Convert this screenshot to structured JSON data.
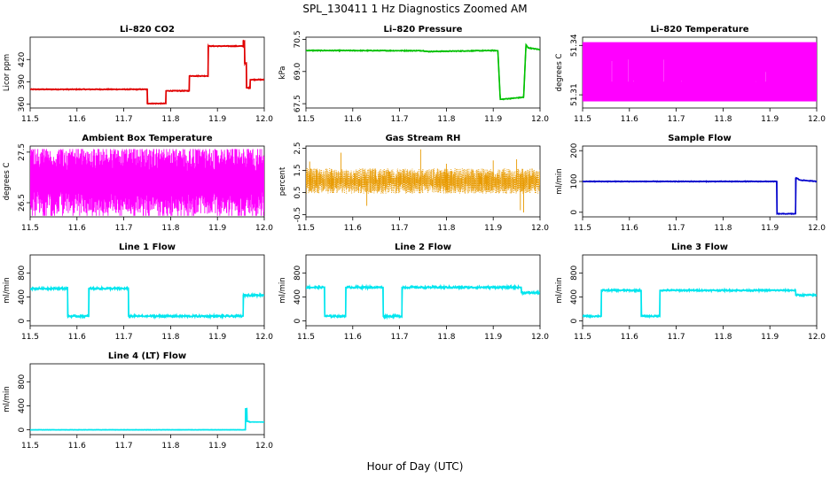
{
  "figure": {
    "title": "SPL_130411  1 Hz Diagnostics Zoomed AM",
    "xlabel": "Hour of Day (UTC)"
  },
  "chart_data": [
    {
      "type": "line",
      "title": "Li–820 CO2",
      "ylabel": "Licor ppm",
      "color": "#e00000",
      "xlim": [
        11.5,
        12.0
      ],
      "ylim": [
        355,
        450
      ],
      "xticks": [
        "11.5",
        "11.6",
        "11.7",
        "11.8",
        "11.9",
        "12.0"
      ],
      "yticks": [
        360,
        390,
        420
      ],
      "noise": 0.6,
      "series": [
        {
          "x": [
            11.5,
            11.75,
            11.75,
            11.79,
            11.79,
            11.84,
            11.84,
            11.88,
            11.88,
            11.955,
            11.955,
            11.958,
            11.958,
            11.962,
            11.962,
            11.97,
            11.97,
            12.0
          ],
          "y": [
            380,
            380,
            361,
            361,
            378,
            378,
            398,
            398,
            438,
            438,
            445,
            445,
            415,
            415,
            382,
            382,
            393,
            393
          ]
        }
      ]
    },
    {
      "type": "line",
      "title": "Li–820 Pressure",
      "ylabel": "kPa",
      "color": "#00c000",
      "xlim": [
        11.5,
        12.0
      ],
      "ylim": [
        67.3,
        70.6
      ],
      "xticks": [
        "11.5",
        "11.6",
        "11.7",
        "11.8",
        "11.9",
        "12.0"
      ],
      "yticks": [
        "67.5",
        "69.0",
        "70.5"
      ],
      "noise": 0.02,
      "series": [
        {
          "x": [
            11.5,
            11.75,
            11.76,
            11.9,
            11.91,
            11.915,
            11.965,
            11.97,
            11.975,
            12.0
          ],
          "y": [
            69.98,
            69.97,
            69.93,
            69.98,
            69.97,
            67.7,
            67.8,
            70.25,
            70.1,
            70.02
          ]
        }
      ]
    },
    {
      "type": "area",
      "title": "Li–820 Temperature",
      "ylabel": "degrees C",
      "color": "#ff00ff",
      "xlim": [
        11.5,
        12.0
      ],
      "ylim": [
        51.302,
        51.345
      ],
      "xticks": [
        "11.5",
        "11.6",
        "11.7",
        "11.8",
        "11.9",
        "12.0"
      ],
      "yticks": [
        "51.31",
        "51.34"
      ],
      "band": [
        51.306,
        51.342
      ],
      "spikes": "upper",
      "low_cut": 51.318,
      "series": [
        {
          "x": [
            11.5,
            12.0
          ],
          "y": [
            51.306,
            51.342
          ]
        }
      ]
    },
    {
      "type": "area",
      "title": "Ambient Box Temperature",
      "ylabel": "degrees C",
      "color": "#ff00ff",
      "xlim": [
        11.5,
        12.0
      ],
      "ylim": [
        26.22,
        27.62
      ],
      "xticks": [
        "11.5",
        "11.6",
        "11.7",
        "11.8",
        "11.9",
        "12.0"
      ],
      "yticks": [
        "26.5",
        "27.5"
      ],
      "band": [
        26.28,
        27.56
      ],
      "spikes": "both",
      "series": [
        {
          "x": [
            11.5,
            12.0
          ],
          "y": [
            26.28,
            27.56
          ]
        }
      ]
    },
    {
      "type": "scatter",
      "title": "Gas Stream RH",
      "ylabel": "percent",
      "color": "#e89a00",
      "xlim": [
        11.5,
        12.0
      ],
      "ylim": [
        -0.6,
        2.6
      ],
      "xticks": [
        "11.5",
        "11.6",
        "11.7",
        "11.8",
        "11.9",
        "12.0"
      ],
      "yticks": [
        "-0.5",
        "0.5",
        "1.5",
        "2.5"
      ],
      "band": [
        0.45,
        1.6
      ],
      "spikes": "sparse",
      "series": [
        {
          "x": [
            11.5,
            12.0
          ],
          "y": [
            0.45,
            1.6
          ]
        }
      ]
    },
    {
      "type": "line",
      "title": "Sample Flow",
      "ylabel": "ml/min",
      "color": "#0000cc",
      "xlim": [
        11.5,
        12.0
      ],
      "ylim": [
        -15,
        215
      ],
      "xticks": [
        "11.5",
        "11.6",
        "11.7",
        "11.8",
        "11.9",
        "12.0"
      ],
      "yticks": [
        "0",
        "100",
        "200"
      ],
      "noise": 1.2,
      "series": [
        {
          "x": [
            11.5,
            11.915,
            11.915,
            11.955,
            11.955,
            11.96,
            11.962,
            12.0
          ],
          "y": [
            100,
            100,
            -5,
            -5,
            110,
            110,
            105,
            100
          ]
        }
      ]
    },
    {
      "type": "line",
      "title": "Line 1 Flow",
      "ylabel": "ml/min",
      "color": "#00e5ee",
      "xlim": [
        11.5,
        12.0
      ],
      "ylim": [
        -80,
        1100
      ],
      "xticks": [
        "11.5",
        "11.6",
        "11.7",
        "11.8",
        "11.9",
        "12.0"
      ],
      "yticks": [
        "0",
        "400",
        "800"
      ],
      "noise": 18,
      "series": [
        {
          "x": [
            11.5,
            11.58,
            11.58,
            11.625,
            11.625,
            11.71,
            11.71,
            11.955,
            11.955,
            12.0
          ],
          "y": [
            540,
            540,
            80,
            80,
            540,
            540,
            80,
            80,
            430,
            430
          ]
        }
      ]
    },
    {
      "type": "line",
      "title": "Line 2 Flow",
      "ylabel": "ml/min",
      "color": "#00e5ee",
      "xlim": [
        11.5,
        12.0
      ],
      "ylim": [
        -80,
        1100
      ],
      "xticks": [
        "11.5",
        "11.6",
        "11.7",
        "11.8",
        "11.9",
        "12.0"
      ],
      "yticks": [
        "0",
        "400",
        "800"
      ],
      "noise": 18,
      "series": [
        {
          "x": [
            11.5,
            11.54,
            11.54,
            11.585,
            11.585,
            11.665,
            11.665,
            11.705,
            11.705,
            11.96,
            11.96,
            12.0
          ],
          "y": [
            560,
            560,
            80,
            80,
            560,
            560,
            80,
            80,
            560,
            560,
            470,
            470
          ]
        }
      ]
    },
    {
      "type": "line",
      "title": "Line 3 Flow",
      "ylabel": "ml/min",
      "color": "#00e5ee",
      "xlim": [
        11.5,
        12.0
      ],
      "ylim": [
        -80,
        1100
      ],
      "xticks": [
        "11.5",
        "11.6",
        "11.7",
        "11.8",
        "11.9",
        "12.0"
      ],
      "yticks": [
        "0",
        "400",
        "800"
      ],
      "noise": 14,
      "series": [
        {
          "x": [
            11.5,
            11.54,
            11.54,
            11.625,
            11.625,
            11.665,
            11.665,
            11.955,
            11.955,
            12.0
          ],
          "y": [
            80,
            80,
            510,
            510,
            80,
            80,
            510,
            510,
            430,
            430
          ]
        }
      ]
    },
    {
      "type": "line",
      "title": "Line 4 (LT) Flow",
      "ylabel": "ml/min",
      "color": "#00e5ee",
      "xlim": [
        11.5,
        12.0
      ],
      "ylim": [
        -80,
        1100
      ],
      "xticks": [
        "11.5",
        "11.6",
        "11.7",
        "11.8",
        "11.9",
        "12.0"
      ],
      "yticks": [
        "0",
        "400",
        "800"
      ],
      "noise": 3,
      "series": [
        {
          "x": [
            11.5,
            11.96,
            11.96,
            11.963,
            11.963,
            11.968,
            11.968,
            12.0
          ],
          "y": [
            0,
            0,
            350,
            350,
            140,
            140,
            130,
            130
          ]
        }
      ]
    }
  ]
}
